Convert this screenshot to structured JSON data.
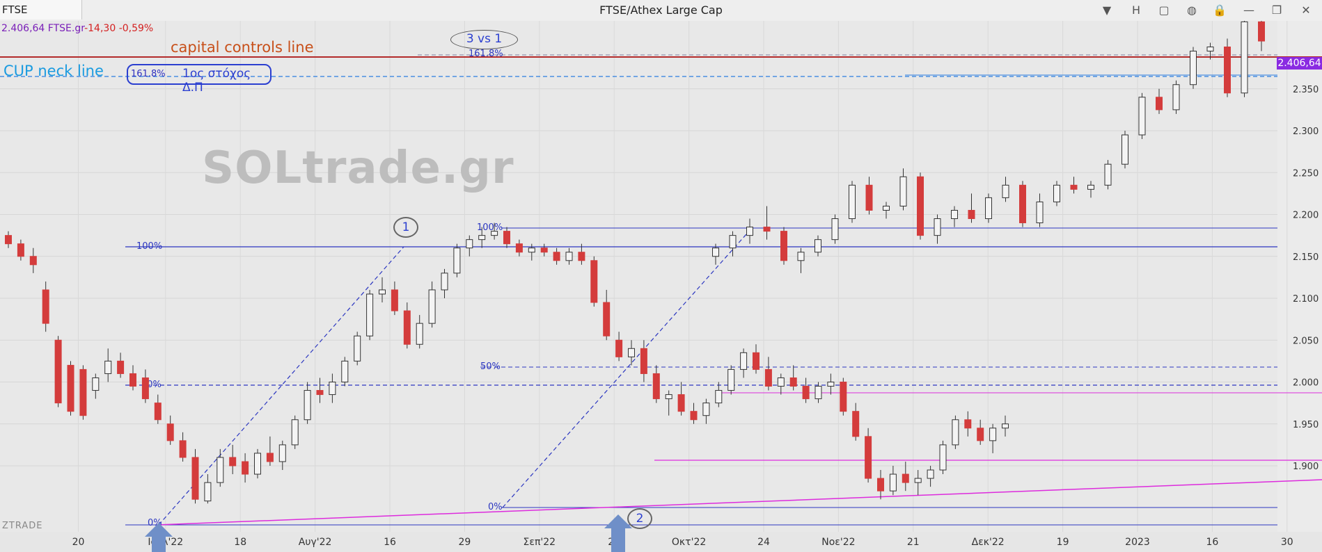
{
  "topbar": {
    "symbol": "FTSE",
    "title": "FTSE/Athex Large Cap",
    "buttons": [
      {
        "name": "dropdown-button",
        "icon": "chevron-down-icon",
        "glyph": "▼"
      },
      {
        "name": "period-button",
        "label": "H"
      },
      {
        "name": "layout-button",
        "icon": "window-icon",
        "glyph": "▢"
      },
      {
        "name": "chat-button",
        "icon": "chat-icon",
        "glyph": "💬"
      },
      {
        "name": "lock-button",
        "icon": "lock-icon",
        "glyph": "🔒"
      },
      {
        "name": "minimize-button",
        "icon": "minimize-icon",
        "glyph": "—"
      },
      {
        "name": "restore-button",
        "icon": "restore-icon",
        "glyph": "❐"
      },
      {
        "name": "close-button",
        "icon": "close-icon",
        "glyph": "✕"
      }
    ]
  },
  "quote": {
    "price": "2.406,64",
    "symbol": "FTSE.gr",
    "change": "-14,30",
    "change_pct": "-0,59%"
  },
  "last_price_tag": "2.406,64",
  "annotations": {
    "watermark": "SOLtrade.gr",
    "capital_controls": "capital controls line",
    "cup_neck": "CUP neck line",
    "target_pct": "161.8%",
    "target_text": "1ος στόχος Δ.Π",
    "vs": "3 vs 1",
    "wave1": "1",
    "wave2": "2",
    "vendor": "ZTRADE"
  },
  "colors": {
    "up": "#f4f4f4",
    "down": "#d43c3c",
    "fib": "#2b36c0",
    "magenta": "#dd2bdd",
    "capital": "#b22a2a",
    "neck": "#2a7de0"
  },
  "chart_data": {
    "type": "candlestick",
    "title": "FTSE/Athex Large Cap",
    "ylim": [
      1855,
      2480
    ],
    "y_ticks": [
      1900,
      1950,
      2000,
      2050,
      2100,
      2150,
      2200,
      2250,
      2300,
      2350
    ],
    "y_tick_labels": [
      "1.900",
      "1.950",
      "2.000",
      "2.050",
      "2.100",
      "2.150",
      "2.200",
      "2.250",
      "2.300",
      "2.350"
    ],
    "x_tick_labels": [
      {
        "i": 5,
        "label": "20"
      },
      {
        "i": 12,
        "label": "Ιουλ'22"
      },
      {
        "i": 18,
        "label": "18"
      },
      {
        "i": 24,
        "label": "Αυγ'22"
      },
      {
        "i": 30,
        "label": "16"
      },
      {
        "i": 36,
        "label": "29"
      },
      {
        "i": 42,
        "label": "Σεπ'22"
      },
      {
        "i": 48,
        "label": "26"
      },
      {
        "i": 54,
        "label": "Οκτ'22"
      },
      {
        "i": 60,
        "label": "24"
      },
      {
        "i": 66,
        "label": "Νοε'22"
      },
      {
        "i": 72,
        "label": "21"
      },
      {
        "i": 78,
        "label": "Δεκ'22"
      },
      {
        "i": 84,
        "label": "19"
      },
      {
        "i": 90,
        "label": "2023"
      },
      {
        "i": 96,
        "label": "16"
      },
      {
        "i": 102,
        "label": "30"
      }
    ],
    "candles": [
      [
        2175,
        2180,
        2160,
        2165
      ],
      [
        2165,
        2170,
        2145,
        2150
      ],
      [
        2150,
        2160,
        2130,
        2140
      ],
      [
        2110,
        2120,
        2060,
        2070
      ],
      [
        2050,
        2055,
        1970,
        1975
      ],
      [
        2020,
        2025,
        1960,
        1965
      ],
      [
        2015,
        2020,
        1955,
        1960
      ],
      [
        1990,
        2010,
        1980,
        2005
      ],
      [
        2010,
        2040,
        2000,
        2025
      ],
      [
        2025,
        2035,
        2005,
        2010
      ],
      [
        2010,
        2020,
        1990,
        1995
      ],
      [
        2005,
        2015,
        1975,
        1980
      ],
      [
        1975,
        1985,
        1950,
        1955
      ],
      [
        1950,
        1960,
        1925,
        1930
      ],
      [
        1930,
        1940,
        1905,
        1910
      ],
      [
        1910,
        1920,
        1855,
        1860
      ],
      [
        1858,
        1890,
        1855,
        1880
      ],
      [
        1880,
        1920,
        1875,
        1910
      ],
      [
        1910,
        1925,
        1890,
        1900
      ],
      [
        1905,
        1915,
        1880,
        1890
      ],
      [
        1890,
        1920,
        1885,
        1915
      ],
      [
        1915,
        1935,
        1900,
        1905
      ],
      [
        1905,
        1930,
        1895,
        1925
      ],
      [
        1925,
        1960,
        1920,
        1955
      ],
      [
        1955,
        2000,
        1950,
        1990
      ],
      [
        1990,
        2005,
        1975,
        1985
      ],
      [
        1985,
        2010,
        1975,
        2000
      ],
      [
        2000,
        2030,
        1995,
        2025
      ],
      [
        2025,
        2060,
        2020,
        2055
      ],
      [
        2055,
        2110,
        2050,
        2105
      ],
      [
        2105,
        2125,
        2095,
        2110
      ],
      [
        2110,
        2120,
        2080,
        2085
      ],
      [
        2085,
        2095,
        2040,
        2045
      ],
      [
        2045,
        2080,
        2040,
        2070
      ],
      [
        2070,
        2120,
        2065,
        2110
      ],
      [
        2110,
        2135,
        2100,
        2130
      ],
      [
        2130,
        2165,
        2125,
        2160
      ],
      [
        2160,
        2175,
        2150,
        2170
      ],
      [
        2170,
        2185,
        2160,
        2175
      ],
      [
        2175,
        2190,
        2170,
        2180
      ],
      [
        2180,
        2185,
        2160,
        2165
      ],
      [
        2165,
        2170,
        2150,
        2155
      ],
      [
        2155,
        2165,
        2145,
        2160
      ],
      [
        2160,
        2165,
        2150,
        2155
      ],
      [
        2155,
        2160,
        2140,
        2145
      ],
      [
        2145,
        2160,
        2140,
        2155
      ],
      [
        2155,
        2165,
        2140,
        2145
      ],
      [
        2145,
        2150,
        2090,
        2095
      ],
      [
        2095,
        2110,
        2050,
        2055
      ],
      [
        2050,
        2060,
        2025,
        2030
      ],
      [
        2030,
        2050,
        2020,
        2040
      ],
      [
        2040,
        2050,
        2000,
        2010
      ],
      [
        2010,
        2020,
        1975,
        1980
      ],
      [
        1980,
        1990,
        1960,
        1985
      ],
      [
        1985,
        2000,
        1960,
        1965
      ],
      [
        1965,
        1975,
        1950,
        1955
      ],
      [
        1960,
        1980,
        1950,
        1975
      ],
      [
        1975,
        2000,
        1970,
        1990
      ],
      [
        1990,
        2020,
        1985,
        2015
      ],
      [
        2015,
        2040,
        2005,
        2035
      ],
      [
        2035,
        2045,
        2010,
        2015
      ],
      [
        2015,
        2030,
        1990,
        1995
      ],
      [
        1995,
        2010,
        1985,
        2005
      ],
      [
        2005,
        2020,
        1990,
        1995
      ],
      [
        1995,
        2005,
        1975,
        1980
      ],
      [
        1980,
        2000,
        1975,
        1995
      ],
      [
        1995,
        2010,
        1985,
        2000
      ],
      [
        2000,
        2005,
        1960,
        1965
      ],
      [
        1965,
        1975,
        1930,
        1935
      ],
      [
        1935,
        1945,
        1880,
        1885
      ],
      [
        1885,
        1895,
        1860,
        1870
      ],
      [
        1870,
        1900,
        1865,
        1890
      ],
      [
        1890,
        1905,
        1870,
        1880
      ],
      [
        1880,
        1895,
        1865,
        1885
      ],
      [
        1885,
        1900,
        1875,
        1895
      ],
      [
        1895,
        1930,
        1890,
        1925
      ],
      [
        1925,
        1960,
        1920,
        1955
      ],
      [
        1955,
        1965,
        1935,
        1945
      ],
      [
        1945,
        1955,
        1925,
        1930
      ],
      [
        1930,
        1950,
        1915,
        1945
      ],
      [
        1945,
        1960,
        1935,
        1950
      ]
    ]
  }
}
